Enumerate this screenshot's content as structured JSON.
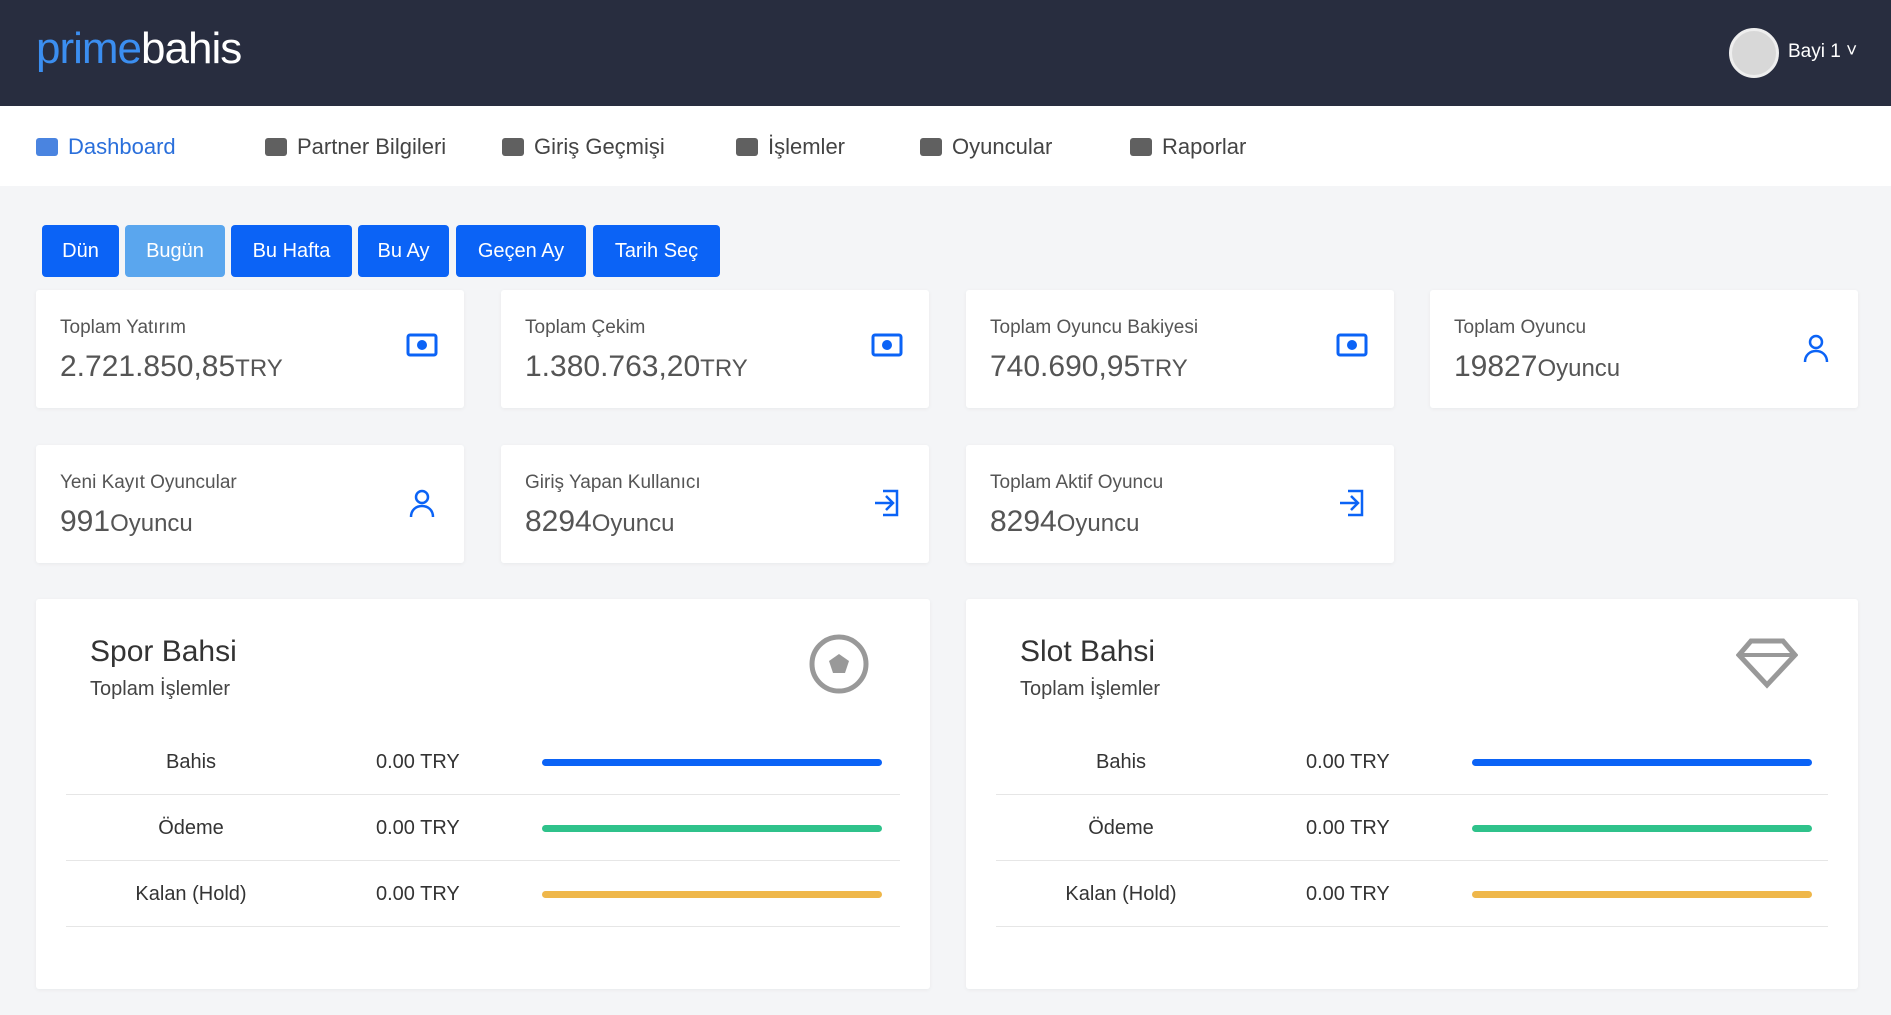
{
  "header": {
    "logo_prime": "prime",
    "logo_bahis": "bahis",
    "user": "Bayi 1"
  },
  "nav": [
    "Dashboard",
    "Partner Bilgileri",
    "Giriş Geçmişi",
    "İşlemler",
    "Oyuncular",
    "Raporlar"
  ],
  "filters": [
    "Dün",
    "Bugün",
    "Bu Hafta",
    "Bu Ay",
    "Geçen Ay",
    "Tarih Seç"
  ],
  "stats": [
    {
      "label": "Toplam Yatırım",
      "value": "2.721.850,85",
      "unit": "TRY"
    },
    {
      "label": "Toplam Çekim",
      "value": "1.380.763,20",
      "unit": "TRY"
    },
    {
      "label": "Toplam Oyuncu Bakiyesi",
      "value": "740.690,95",
      "unit": "TRY"
    },
    {
      "label": "Toplam Oyuncu",
      "value": "19827",
      "unit": "Oyuncu"
    },
    {
      "label": "Yeni Kayıt Oyuncular",
      "value": "991",
      "unit": "Oyuncu"
    },
    {
      "label": "Giriş Yapan Kullanıcı",
      "value": "8294",
      "unit": "Oyuncu"
    },
    {
      "label": "Toplam Aktif Oyuncu",
      "value": "8294",
      "unit": "Oyuncu"
    }
  ],
  "panels": [
    {
      "title": "Spor Bahsi",
      "subtitle": "Toplam İşlemler",
      "rows": [
        {
          "label": "Bahis",
          "value": "0.00 TRY"
        },
        {
          "label": "Ödeme",
          "value": "0.00 TRY"
        },
        {
          "label": "Kalan (Hold)",
          "value": "0.00 TRY"
        }
      ]
    },
    {
      "title": "Slot Bahsi",
      "subtitle": "Toplam İşlemler",
      "rows": [
        {
          "label": "Bahis",
          "value": "0.00 TRY"
        },
        {
          "label": "Ödeme",
          "value": "0.00 TRY"
        },
        {
          "label": "Kalan (Hold)",
          "value": "0.00 TRY"
        }
      ]
    }
  ]
}
